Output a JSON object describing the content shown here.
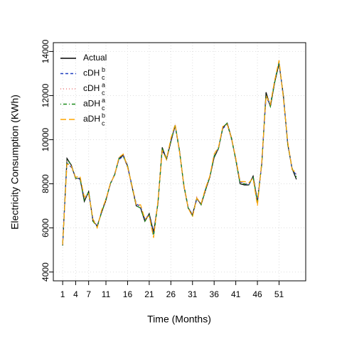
{
  "chart_data": {
    "type": "line",
    "xlabel": "Time (Months)",
    "ylabel": "Electricity Consumption (KWh)",
    "x": [
      1,
      2,
      3,
      4,
      5,
      6,
      7,
      8,
      9,
      10,
      11,
      12,
      13,
      14,
      15,
      16,
      17,
      18,
      19,
      20,
      21,
      22,
      23,
      24,
      25,
      26,
      27,
      28,
      29,
      30,
      31,
      32,
      33,
      34,
      35,
      36,
      37,
      38,
      39,
      40,
      41,
      42,
      43,
      44,
      45,
      46,
      47,
      48,
      49,
      50,
      51,
      52,
      53,
      54,
      55
    ],
    "xlim": [
      -1.16,
      57.16
    ],
    "xticks": [
      1,
      4,
      7,
      11,
      16,
      21,
      26,
      31,
      36,
      41,
      46,
      51
    ],
    "ylim": [
      3600,
      14400
    ],
    "yticks": [
      4000,
      6000,
      8000,
      10000,
      12000,
      14000
    ],
    "grid": true,
    "legend": "top-left",
    "series": [
      {
        "name": "Actual",
        "color": "#000000",
        "style": "solid",
        "values": [
          5200,
          9150,
          8850,
          8250,
          8250,
          7200,
          7650,
          6300,
          6100,
          6700,
          7250,
          8000,
          8400,
          9150,
          9300,
          8800,
          7900,
          7000,
          6900,
          6300,
          6650,
          5800,
          7100,
          9650,
          9100,
          9900,
          10650,
          9500,
          7900,
          6900,
          6600,
          7350,
          7050,
          7700,
          8300,
          9200,
          9600,
          10550,
          10750,
          10100,
          9100,
          8000,
          7950,
          7950,
          8350,
          7200,
          8900,
          12150,
          11500,
          12600,
          13450,
          12000,
          9800,
          8700,
          8200
        ]
      },
      {
        "name": "cDH",
        "sup": "b",
        "sub": "c",
        "color": "#1f3fbf",
        "style": "dashed",
        "values": [
          5300,
          8950,
          8750,
          8300,
          8200,
          7350,
          7550,
          6400,
          6050,
          6750,
          7300,
          7950,
          8450,
          9100,
          9250,
          8750,
          7950,
          7100,
          6950,
          6400,
          6600,
          5700,
          7150,
          9500,
          9150,
          9950,
          10600,
          9450,
          7950,
          6950,
          6550,
          7300,
          7100,
          7750,
          8350,
          9250,
          9650,
          10500,
          10700,
          10050,
          9150,
          8100,
          8000,
          7950,
          8300,
          7100,
          8950,
          11900,
          11600,
          12700,
          13500,
          11900,
          9850,
          8650,
          8400
        ]
      },
      {
        "name": "cDH",
        "sup": "a",
        "sub": "c",
        "color": "#f08080",
        "style": "dotted",
        "values": [
          5250,
          9000,
          8800,
          8200,
          8300,
          7300,
          7600,
          6350,
          6100,
          6700,
          7250,
          8050,
          8350,
          9200,
          9300,
          8700,
          7850,
          7050,
          7000,
          6350,
          6550,
          5650,
          7200,
          9550,
          9100,
          10000,
          10700,
          9500,
          7900,
          6850,
          6600,
          7400,
          7050,
          7700,
          8300,
          9300,
          9600,
          10600,
          10700,
          10000,
          9200,
          8050,
          8050,
          8000,
          8300,
          7100,
          9000,
          11950,
          11550,
          12650,
          13600,
          11850,
          9900,
          8700,
          8450
        ]
      },
      {
        "name": "aDH",
        "sup": "a",
        "sub": "c",
        "color": "#1a8a1a",
        "style": "dotdash",
        "values": [
          5200,
          9100,
          8850,
          8250,
          8250,
          7250,
          7650,
          6300,
          6050,
          6700,
          7300,
          8000,
          8400,
          9150,
          9250,
          8800,
          7900,
          7000,
          6900,
          6300,
          6600,
          5600,
          7100,
          9600,
          9150,
          9950,
          10650,
          9500,
          7950,
          6900,
          6550,
          7350,
          7050,
          7700,
          8300,
          9250,
          9600,
          10550,
          10750,
          10050,
          9100,
          8000,
          8000,
          7950,
          8350,
          7150,
          8950,
          12050,
          11500,
          12600,
          13500,
          11950,
          9800,
          8700,
          8300
        ]
      },
      {
        "name": "aDH",
        "sup": "b",
        "sub": "c",
        "color": "#ffa500",
        "style": "longdash",
        "values": [
          5250,
          8900,
          8800,
          8300,
          8350,
          7400,
          7550,
          6400,
          6000,
          6800,
          7300,
          8000,
          8400,
          9200,
          9350,
          8750,
          7950,
          7050,
          7050,
          6400,
          6550,
          5550,
          7200,
          9500,
          9100,
          10050,
          10700,
          9450,
          7950,
          6900,
          6500,
          7350,
          7100,
          7800,
          8350,
          9350,
          9650,
          10600,
          10700,
          10100,
          9150,
          8100,
          8100,
          8050,
          8250,
          7000,
          9000,
          12000,
          11600,
          12700,
          13600,
          11900,
          9900,
          8650,
          8500
        ]
      }
    ]
  }
}
